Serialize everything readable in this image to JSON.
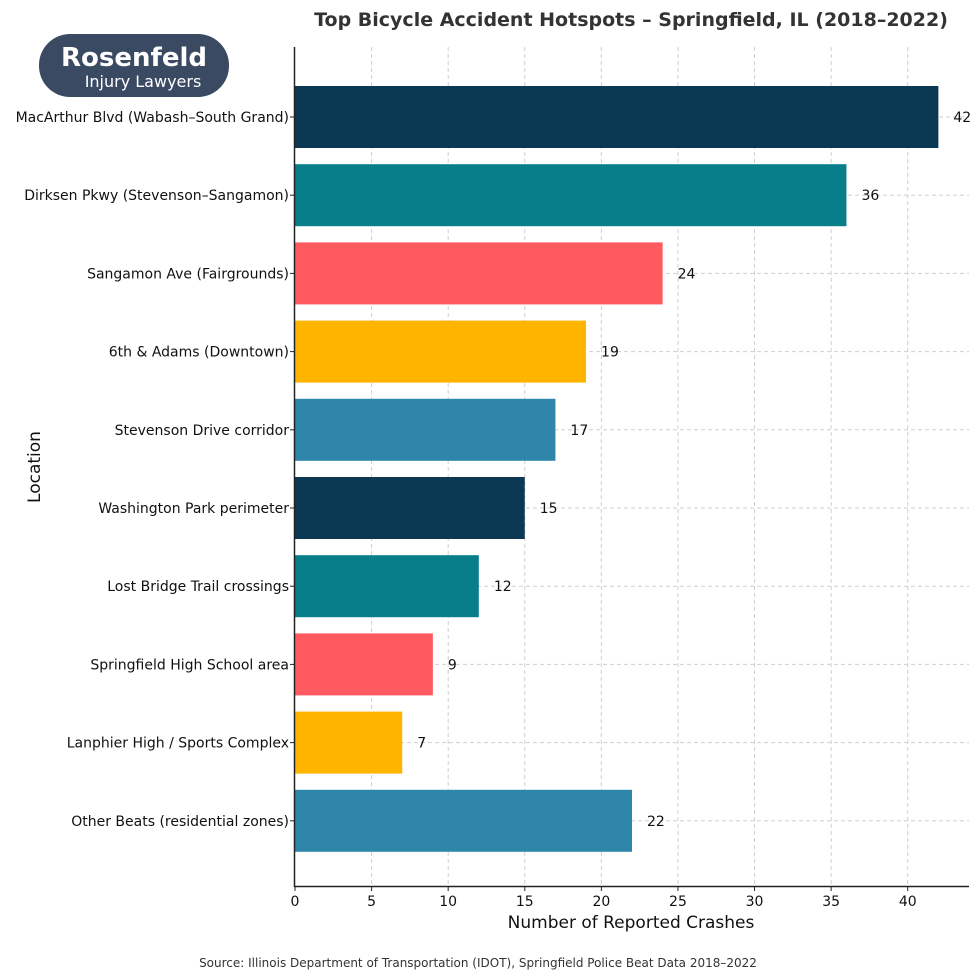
{
  "logo": {
    "name": "Rosenfeld",
    "subtitle": "Injury Lawyers",
    "color": "#3a4a63"
  },
  "chart_data": {
    "type": "bar",
    "orientation": "horizontal",
    "title": "Top Bicycle Accident Hotspots – Springfield, IL (2018–2022)",
    "xlabel": "Number of Reported Crashes",
    "ylabel": "Location",
    "xlim": [
      0,
      44
    ],
    "xticks": [
      0,
      5,
      10,
      15,
      20,
      25,
      30,
      35,
      40
    ],
    "grid": true,
    "categories": [
      "MacArthur Blvd (Wabash–South Grand)",
      "Dirksen Pkwy (Stevenson–Sangamon)",
      "Sangamon Ave (Fairgrounds)",
      "6th & Adams (Downtown)",
      "Stevenson Drive corridor",
      "Washington Park perimeter",
      "Lost Bridge Trail crossings",
      "Springfield High School area",
      "Lanphier High / Sports Complex",
      "Other Beats (residential zones)"
    ],
    "values": [
      42,
      36,
      24,
      19,
      17,
      15,
      12,
      9,
      7,
      22
    ],
    "colors": [
      "#0b3954",
      "#087e8b",
      "#ff5a5f",
      "#ffb400",
      "#2e86ab",
      "#0b3954",
      "#087e8b",
      "#ff5a5f",
      "#ffb400",
      "#2e86ab"
    ],
    "source": "Source: Illinois Department of Transportation (IDOT), Springfield Police Beat Data 2018–2022"
  }
}
